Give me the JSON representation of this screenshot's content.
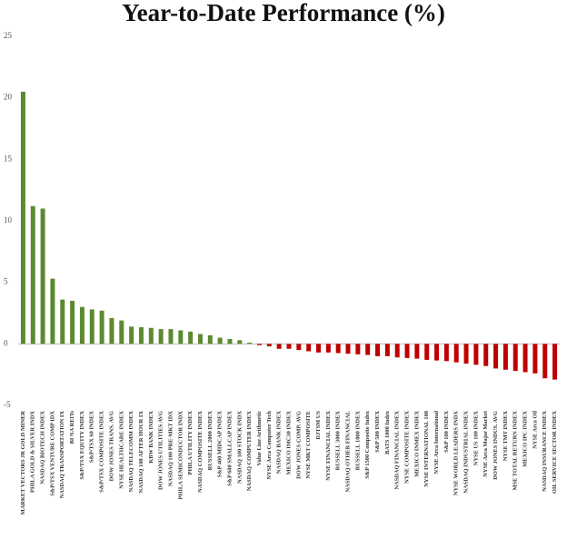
{
  "chart_data": {
    "type": "bar",
    "title": "Year-to-Date Performance (%)",
    "categories": [
      "MARKET VECTORS JR GOLD MINER",
      "PHILA GOLD & SILVER INDX",
      "NASDAQ BIOTECH INDEX",
      "S&P/TSX VENTURE COMP IDX",
      "NASDAQ TRANSPORTATION IX",
      "BI NA REITs",
      "S&P/TSX EQUITY INDEX",
      "S&P/TSX 60 INDEX",
      "S&P/TSX COMPOSITE INDEX",
      "DOW JONES TRANS. AVG",
      "NYSE HEALTHCARE INDEX",
      "NASDAQ TELECOMM INDEX",
      "NASDAQ 100 AFTER HOUR IX",
      "KBW BANK INDEX",
      "DOW JONES UTILITIES AVG",
      "NASDAQ 100 PRE-MKT IDX",
      "PHILA SEMICONDUCTOR INDX",
      "PHILA UTILITY INDEX",
      "NASDAQ COMPOSITE INDEX",
      "RUSSELL 2000 INDEX",
      "S&P 400 MIDCAP INDEX",
      "S&P 600 SMALLCAP INDEX",
      "NASDAQ 100 STOCK INDX",
      "NASDAQ COMPUTER INDEX",
      "Value Line Arithmetic",
      "NYSE Arca Computer Tech",
      "NASDAQ BANK INDEX",
      "MEXICO IMC30 INDEX",
      "DOW JONES COMP. AVG",
      "NYSE MKT COMPOSITE",
      "DJTSM US",
      "NYSE FINANCIAL INDEX",
      "RUSSELL 3000 INDEX",
      "NASDAQ OTHER FINANCIAL",
      "RUSSELL 1000 INDEX",
      "S&P 1500 Composite Index",
      "S&P 500 INDEX",
      "BATS 1000 Index",
      "NASDAQ FINANCIAL INDEX",
      "NYSE COMPOSITE INDEX",
      "MEXICO INMEX INDEX",
      "NYSE INTERNATIONAL 100",
      "NYSE Arca International",
      "S&P 100 INDEX",
      "NYSE WORLD LEADERS INDX",
      "NASDAQ INDUSTRIAL INDEX",
      "NYSE US 100 INDEX",
      "NYSE Arca Major Market",
      "DOW JONES INDUS. AVG",
      "NYSE TMT INDEX",
      "MSE TOTAL RETURN INDEX",
      "MEXICO IPC INDEX",
      "NYSE Arca Oil",
      "NASDAQ INSURANCE INDEX",
      "OIL SERVICE SECTOR INDEX"
    ],
    "values": [
      20.5,
      11.2,
      11.0,
      5.3,
      3.6,
      3.5,
      3.0,
      2.8,
      2.7,
      2.1,
      1.9,
      1.4,
      1.35,
      1.3,
      1.2,
      1.2,
      1.1,
      1.0,
      0.8,
      0.7,
      0.5,
      0.4,
      0.3,
      0.1,
      -0.1,
      -0.2,
      -0.4,
      -0.4,
      -0.5,
      -0.6,
      -0.7,
      -0.7,
      -0.75,
      -0.8,
      -0.85,
      -0.9,
      -1.0,
      -1.0,
      -1.1,
      -1.15,
      -1.2,
      -1.3,
      -1.35,
      -1.4,
      -1.5,
      -1.6,
      -1.7,
      -1.8,
      -2.0,
      -2.1,
      -2.2,
      -2.3,
      -2.4,
      -2.8,
      -2.9
    ],
    "positive_color": "#5b8a2f",
    "negative_color": "#c00000",
    "ylim": [
      -5,
      25
    ],
    "yticks": [
      -5,
      0,
      5,
      10,
      15,
      20,
      25
    ],
    "grid": false
  }
}
